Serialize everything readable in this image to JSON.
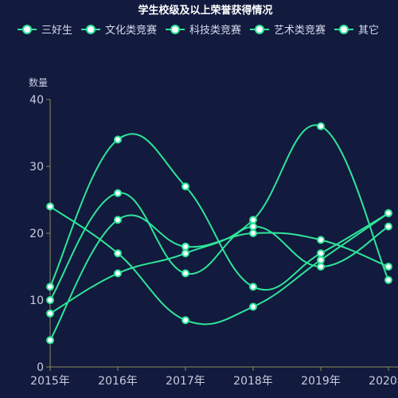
{
  "chart_data": {
    "type": "line",
    "title": "学生校级及以上荣誉获得情况",
    "ylabel": "数量",
    "xlabel": "",
    "categories": [
      "2015年",
      "2016年",
      "2017年",
      "2018年",
      "2019年",
      "2020年"
    ],
    "ylim": [
      0,
      40
    ],
    "yticks": [
      0,
      10,
      20,
      30,
      40
    ],
    "smooth": true,
    "legend_position": "top",
    "color": "#2ee59a",
    "series": [
      {
        "name": "三好生",
        "values": [
          24,
          17,
          7,
          9,
          16,
          23
        ]
      },
      {
        "name": "文化类竞赛",
        "values": [
          12,
          34,
          27,
          12,
          17,
          23
        ]
      },
      {
        "name": "科技类竞赛",
        "values": [
          8,
          14,
          17,
          22,
          36,
          13
        ]
      },
      {
        "name": "艺术类竞赛",
        "values": [
          10,
          26,
          14,
          21,
          15,
          21
        ]
      },
      {
        "name": "其它",
        "values": [
          4,
          22,
          18,
          20,
          19,
          15
        ]
      }
    ]
  }
}
